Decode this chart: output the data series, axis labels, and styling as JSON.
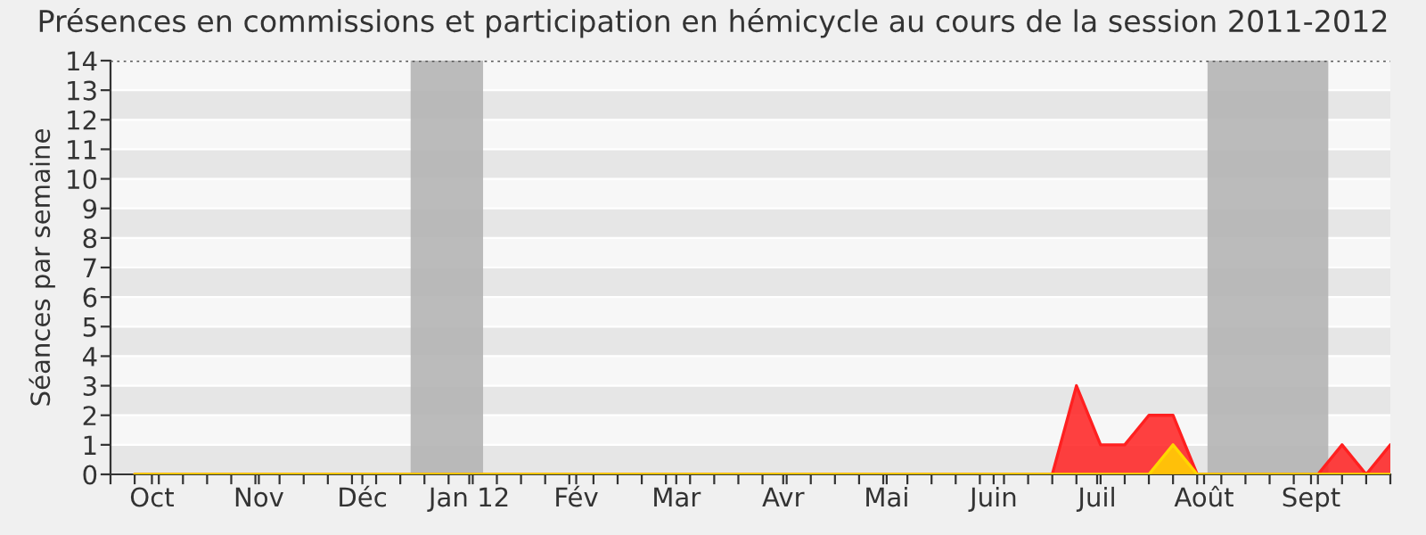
{
  "chart_data": {
    "type": "area",
    "title": "Présences en commissions et participation en hémicycle au cours de la session 2011-2012",
    "ylabel": "Séances par semaine",
    "x": [
      "2011-09-26",
      "2011-10-03",
      "2011-10-10",
      "2011-10-17",
      "2011-10-24",
      "2011-10-31",
      "2011-11-07",
      "2011-11-14",
      "2011-11-21",
      "2011-11-28",
      "2011-12-05",
      "2011-12-12",
      "2011-12-19",
      "2011-12-26",
      "2012-01-02",
      "2012-01-09",
      "2012-01-16",
      "2012-01-23",
      "2012-01-30",
      "2012-02-06",
      "2012-02-13",
      "2012-02-20",
      "2012-02-27",
      "2012-03-05",
      "2012-03-12",
      "2012-03-19",
      "2012-03-26",
      "2012-04-02",
      "2012-04-09",
      "2012-04-16",
      "2012-04-23",
      "2012-04-30",
      "2012-05-07",
      "2012-05-14",
      "2012-05-21",
      "2012-05-28",
      "2012-06-04",
      "2012-06-11",
      "2012-06-18",
      "2012-06-25",
      "2012-07-02",
      "2012-07-09",
      "2012-07-16",
      "2012-07-23",
      "2012-07-30",
      "2012-08-06",
      "2012-08-13",
      "2012-08-20",
      "2012-08-27",
      "2012-09-03",
      "2012-09-10",
      "2012-09-17",
      "2012-09-24"
    ],
    "series": [
      {
        "color": "#ff2020",
        "values": [
          0,
          0,
          0,
          0,
          0,
          0,
          0,
          0,
          0,
          0,
          0,
          0,
          0,
          0,
          0,
          0,
          0,
          0,
          0,
          0,
          0,
          0,
          0,
          0,
          0,
          0,
          0,
          0,
          0,
          0,
          0,
          0,
          0,
          0,
          0,
          0,
          0,
          0,
          0,
          3,
          1,
          1,
          2,
          2,
          0,
          0,
          0,
          0,
          0,
          0,
          1,
          0,
          1
        ]
      },
      {
        "color": "#ffd700",
        "values": [
          0,
          0,
          0,
          0,
          0,
          0,
          0,
          0,
          0,
          0,
          0,
          0,
          0,
          0,
          0,
          0,
          0,
          0,
          0,
          0,
          0,
          0,
          0,
          0,
          0,
          0,
          0,
          0,
          0,
          0,
          0,
          0,
          0,
          0,
          0,
          0,
          0,
          0,
          0,
          0,
          0,
          0,
          0,
          1,
          0,
          0,
          0,
          0,
          0,
          0,
          0,
          0,
          0
        ]
      }
    ],
    "xlim": [
      "2011-09-19",
      "2012-09-24"
    ],
    "xticks": [
      {
        "value": "2011-09-19",
        "label": null
      },
      {
        "value": "2011-09-26",
        "label": null
      },
      {
        "value": "2011-10-03",
        "label": null
      },
      {
        "value": "2011-10-10",
        "label": null
      },
      {
        "value": "2011-10-17",
        "label": null
      },
      {
        "value": "2011-10-24",
        "label": null
      },
      {
        "value": "2011-10-31",
        "label": null
      },
      {
        "value": "2011-11-07",
        "label": null
      },
      {
        "value": "2011-11-14",
        "label": null
      },
      {
        "value": "2011-11-21",
        "label": null
      },
      {
        "value": "2011-11-28",
        "label": null
      },
      {
        "value": "2011-12-05",
        "label": null
      },
      {
        "value": "2011-12-12",
        "label": null
      },
      {
        "value": "2011-12-19",
        "label": null
      },
      {
        "value": "2011-12-26",
        "label": null
      },
      {
        "value": "2012-01-02",
        "label": null
      },
      {
        "value": "2012-01-09",
        "label": null
      },
      {
        "value": "2012-01-16",
        "label": null
      },
      {
        "value": "2012-01-23",
        "label": null
      },
      {
        "value": "2012-01-30",
        "label": null
      },
      {
        "value": "2012-02-06",
        "label": null
      },
      {
        "value": "2012-02-13",
        "label": null
      },
      {
        "value": "2012-02-20",
        "label": null
      },
      {
        "value": "2012-02-27",
        "label": null
      },
      {
        "value": "2012-03-05",
        "label": null
      },
      {
        "value": "2012-03-12",
        "label": null
      },
      {
        "value": "2012-03-19",
        "label": null
      },
      {
        "value": "2012-03-26",
        "label": null
      },
      {
        "value": "2012-04-02",
        "label": null
      },
      {
        "value": "2012-04-09",
        "label": null
      },
      {
        "value": "2012-04-16",
        "label": null
      },
      {
        "value": "2012-04-23",
        "label": null
      },
      {
        "value": "2012-04-30",
        "label": null
      },
      {
        "value": "2012-05-07",
        "label": null
      },
      {
        "value": "2012-05-14",
        "label": null
      },
      {
        "value": "2012-05-21",
        "label": null
      },
      {
        "value": "2012-05-28",
        "label": null
      },
      {
        "value": "2012-06-04",
        "label": null
      },
      {
        "value": "2012-06-11",
        "label": null
      },
      {
        "value": "2012-06-18",
        "label": null
      },
      {
        "value": "2012-06-25",
        "label": null
      },
      {
        "value": "2012-07-02",
        "label": null
      },
      {
        "value": "2012-07-09",
        "label": null
      },
      {
        "value": "2012-07-16",
        "label": null
      },
      {
        "value": "2012-07-23",
        "label": null
      },
      {
        "value": "2012-07-30",
        "label": null
      },
      {
        "value": "2012-08-06",
        "label": null
      },
      {
        "value": "2012-08-13",
        "label": null
      },
      {
        "value": "2012-08-20",
        "label": null
      },
      {
        "value": "2012-08-27",
        "label": null
      },
      {
        "value": "2012-09-03",
        "label": null
      },
      {
        "value": "2012-09-10",
        "label": null
      },
      {
        "value": "2012-09-17",
        "label": null
      },
      {
        "value": "2012-09-24",
        "label": null
      },
      {
        "value": "2011-10-01",
        "label": "Oct"
      },
      {
        "value": "2011-11-01",
        "label": "Nov"
      },
      {
        "value": "2011-12-01",
        "label": "Déc"
      },
      {
        "value": "2012-01-01",
        "label": "Jan 12"
      },
      {
        "value": "2012-02-01",
        "label": "Fév"
      },
      {
        "value": "2012-03-01",
        "label": "Mar"
      },
      {
        "value": "2012-04-01",
        "label": "Avr"
      },
      {
        "value": "2012-05-01",
        "label": "Mai"
      },
      {
        "value": "2012-06-01",
        "label": "Juin"
      },
      {
        "value": "2012-07-01",
        "label": "Juil"
      },
      {
        "value": "2012-08-01",
        "label": "Août"
      },
      {
        "value": "2012-09-01",
        "label": "Sept"
      }
    ],
    "ylim": [
      0,
      14
    ],
    "yticks": [
      0,
      1,
      2,
      3,
      4,
      5,
      6,
      7,
      8,
      9,
      10,
      11,
      12,
      13,
      14
    ],
    "bands": [
      {
        "axis": "x",
        "from": "2011-12-15",
        "to": "2012-01-05",
        "color": "#b4b4b4"
      },
      {
        "axis": "x",
        "from": "2012-08-02",
        "to": "2012-09-06",
        "color": "#b4b4b4"
      }
    ],
    "grid": "y"
  }
}
